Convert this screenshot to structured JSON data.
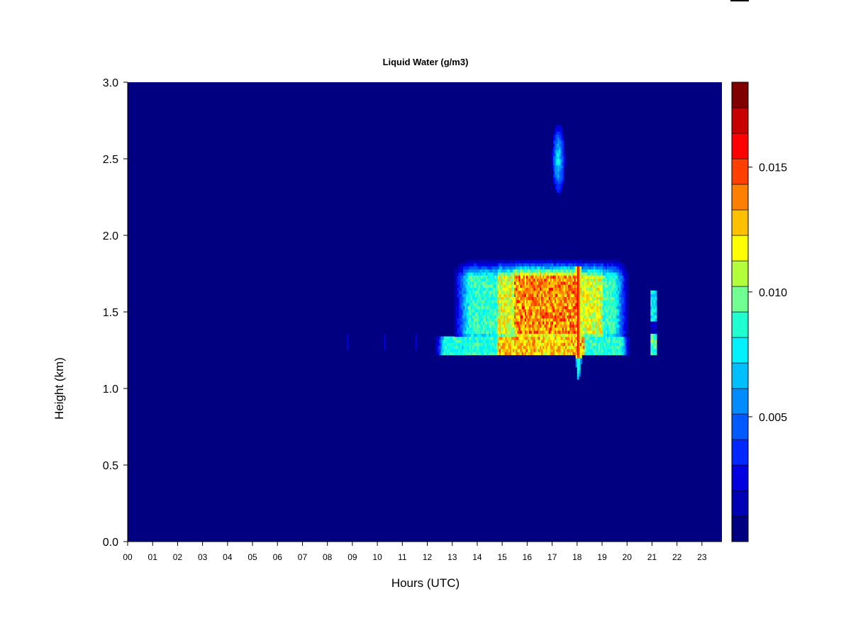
{
  "chart_data": {
    "type": "heatmap",
    "title": "Liquid Water (g/m3)",
    "xlabel": "Hours (UTC)",
    "ylabel": "Height (km)",
    "xlim": [
      0,
      23.8
    ],
    "ylim": [
      0.0,
      3.0
    ],
    "x_ticks": [
      "00",
      "01",
      "02",
      "03",
      "04",
      "05",
      "06",
      "07",
      "08",
      "09",
      "10",
      "11",
      "12",
      "13",
      "14",
      "15",
      "16",
      "17",
      "18",
      "19",
      "20",
      "21",
      "22",
      "23"
    ],
    "y_ticks": [
      "0.0",
      "0.5",
      "1.0",
      "1.5",
      "2.0",
      "2.5",
      "3.0"
    ],
    "background_value": 0.0,
    "colorbar": {
      "min": 0.0,
      "max": 0.0184,
      "levels": 17,
      "tick_values": [
        0.005,
        0.01,
        0.015
      ],
      "tick_labels": [
        "0.005",
        "0.010",
        "0.015"
      ],
      "colors": [
        "#000080",
        "#0000b4",
        "#0000e0",
        "#0028ff",
        "#005aff",
        "#008cff",
        "#00bfff",
        "#00f0ff",
        "#20ffd0",
        "#70ff90",
        "#b4ff3c",
        "#ffff00",
        "#ffc000",
        "#ff8000",
        "#ff4000",
        "#ff0000",
        "#c80000",
        "#800000"
      ]
    },
    "features": [
      {
        "name": "main cloud upper layer",
        "hours": [
          13.0,
          20.1
        ],
        "heights_km": [
          1.33,
          1.85
        ],
        "peak_value": 0.016,
        "peak_hours": [
          15.5,
          18.0
        ]
      },
      {
        "name": "main cloud base layer",
        "hours": [
          12.3,
          20.1
        ],
        "heights_km": [
          1.22,
          1.35
        ],
        "peak_value": 0.014
      },
      {
        "name": "drizzle shaft",
        "hours": [
          17.9,
          18.2
        ],
        "heights_km": [
          1.03,
          1.8
        ],
        "peak_value": 0.0165
      },
      {
        "name": "upper cloud",
        "hours": [
          17.0,
          17.5
        ],
        "heights_km": [
          2.27,
          2.72
        ],
        "peak_value": 0.009
      },
      {
        "name": "isolated cloud 21h",
        "hours": [
          20.95,
          21.2
        ],
        "heights_km": [
          1.22,
          1.65
        ],
        "peak_value": 0.011
      },
      {
        "name": "isolated traces",
        "hours": [
          8.8,
          11.6
        ],
        "heights_km": [
          1.25,
          1.35
        ],
        "peak_value": 0.003
      }
    ]
  }
}
